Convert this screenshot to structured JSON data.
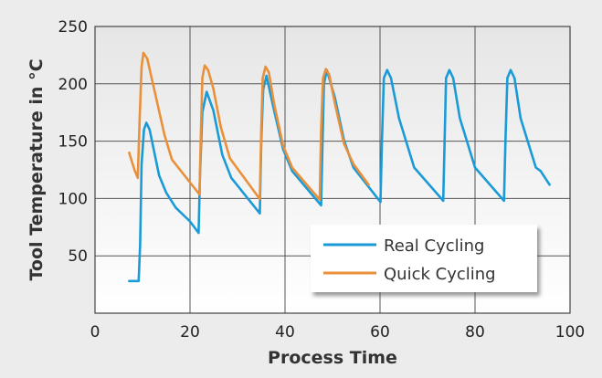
{
  "chart_data": {
    "type": "line",
    "title": "",
    "xlabel": "Process Time",
    "ylabel": "Tool Temperature in °C",
    "xlim": [
      0,
      100
    ],
    "ylim": [
      0,
      250
    ],
    "xticks": [
      0,
      20,
      40,
      60,
      80,
      100
    ],
    "yticks": [
      50,
      100,
      150,
      200,
      250
    ],
    "grid": true,
    "legend_position": "bottom-right",
    "series": [
      {
        "name": "Real Cycling",
        "color": "#1a9ad6",
        "points": [
          [
            7.2,
            28
          ],
          [
            9.2,
            28
          ],
          [
            9.5,
            60
          ],
          [
            9.8,
            130
          ],
          [
            10.3,
            160
          ],
          [
            10.8,
            166
          ],
          [
            11.5,
            160
          ],
          [
            12.5,
            140
          ],
          [
            13.5,
            120
          ],
          [
            15,
            105
          ],
          [
            17,
            92
          ],
          [
            20,
            80
          ],
          [
            21.8,
            70
          ],
          [
            22.1,
            120
          ],
          [
            22.6,
            175
          ],
          [
            23.5,
            193
          ],
          [
            24.9,
            177
          ],
          [
            26.8,
            138
          ],
          [
            28.7,
            118
          ],
          [
            34.7,
            87
          ],
          [
            35,
            150
          ],
          [
            35.4,
            195
          ],
          [
            36.1,
            207
          ],
          [
            37.7,
            177
          ],
          [
            39.6,
            143
          ],
          [
            41.5,
            124
          ],
          [
            47.6,
            94
          ],
          [
            47.9,
            150
          ],
          [
            48.2,
            200
          ],
          [
            48.8,
            212
          ],
          [
            50.5,
            188
          ],
          [
            52.4,
            151
          ],
          [
            54.4,
            127
          ],
          [
            60.1,
            97
          ],
          [
            60.4,
            150
          ],
          [
            60.8,
            205
          ],
          [
            61.5,
            212
          ],
          [
            62.3,
            205
          ],
          [
            64,
            170
          ],
          [
            67.2,
            127
          ],
          [
            73.3,
            98
          ],
          [
            73.6,
            150
          ],
          [
            73.9,
            205
          ],
          [
            74.6,
            212
          ],
          [
            75.4,
            205
          ],
          [
            76.8,
            170
          ],
          [
            80,
            127
          ],
          [
            86.1,
            98
          ],
          [
            86.4,
            150
          ],
          [
            86.8,
            205
          ],
          [
            87.5,
            212
          ],
          [
            88.3,
            205
          ],
          [
            89.6,
            170
          ],
          [
            92.8,
            127
          ],
          [
            93.8,
            124
          ],
          [
            95.7,
            112
          ]
        ]
      },
      {
        "name": "Quick Cycling",
        "color": "#e8903a",
        "points": [
          [
            7.2,
            140
          ],
          [
            8.3,
            125
          ],
          [
            9,
            118
          ],
          [
            9.4,
            170
          ],
          [
            9.8,
            215
          ],
          [
            10.2,
            227
          ],
          [
            11,
            222
          ],
          [
            12.7,
            191
          ],
          [
            14.6,
            156
          ],
          [
            16.2,
            134
          ],
          [
            22,
            103.5
          ],
          [
            22.3,
            160
          ],
          [
            22.6,
            205
          ],
          [
            23.1,
            216
          ],
          [
            23.8,
            212
          ],
          [
            24.9,
            196
          ],
          [
            26.5,
            162
          ],
          [
            28.4,
            135
          ],
          [
            34.7,
            99.5
          ],
          [
            35,
            160
          ],
          [
            35.3,
            205
          ],
          [
            35.9,
            215
          ],
          [
            36.6,
            210
          ],
          [
            37.7,
            183
          ],
          [
            39.6,
            146
          ],
          [
            41.5,
            127
          ],
          [
            47.3,
            99
          ],
          [
            47.6,
            160
          ],
          [
            48,
            205
          ],
          [
            48.6,
            213
          ],
          [
            49.3,
            208
          ],
          [
            50.5,
            183
          ],
          [
            52.4,
            148
          ],
          [
            54.4,
            130
          ],
          [
            57.6,
            112
          ]
        ]
      }
    ]
  }
}
